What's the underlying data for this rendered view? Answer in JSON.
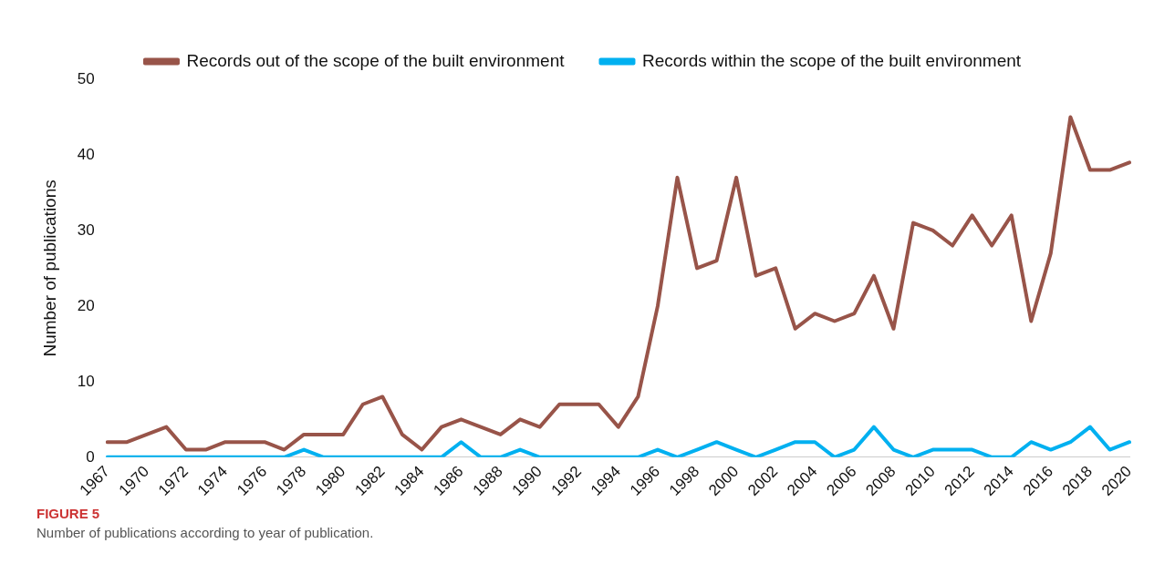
{
  "chart_data": {
    "type": "line",
    "categories": [
      "1967",
      null,
      "1970",
      null,
      "1972",
      null,
      "1974",
      null,
      "1976",
      null,
      "1978",
      null,
      "1980",
      null,
      "1982",
      null,
      "1984",
      null,
      "1986",
      null,
      "1988",
      null,
      "1990",
      null,
      "1992",
      null,
      "1994",
      null,
      "1996",
      null,
      "1998",
      null,
      "2000",
      null,
      "2002",
      null,
      "2004",
      null,
      "2006",
      null,
      "2008",
      null,
      "2010",
      null,
      "2012",
      null,
      "2014",
      null,
      "2016",
      null,
      "2018",
      null,
      "2020"
    ],
    "series": [
      {
        "name": "Records out of the scope of the built environment",
        "color": "#985449",
        "values": [
          2,
          2,
          3,
          4,
          1,
          1,
          2,
          2,
          2,
          1,
          3,
          3,
          3,
          7,
          8,
          3,
          1,
          4,
          5,
          4,
          3,
          5,
          4,
          7,
          7,
          7,
          4,
          8,
          20,
          37,
          25,
          26,
          37,
          24,
          25,
          17,
          19,
          18,
          19,
          24,
          17,
          31,
          30,
          28,
          32,
          28,
          32,
          18,
          27,
          45,
          38,
          38,
          39
        ]
      },
      {
        "name": "Records within the scope of the built environment",
        "color": "#00b0f0",
        "values": [
          0,
          0,
          0,
          0,
          0,
          0,
          0,
          0,
          0,
          0,
          1,
          0,
          0,
          0,
          0,
          0,
          0,
          0,
          2,
          0,
          0,
          1,
          0,
          0,
          0,
          0,
          0,
          0,
          1,
          0,
          1,
          2,
          1,
          0,
          1,
          2,
          2,
          0,
          1,
          4,
          1,
          0,
          1,
          1,
          1,
          0,
          0,
          2,
          1,
          2,
          4,
          1,
          2
        ]
      }
    ],
    "ylabel": "Number of publications",
    "ylim": [
      0,
      50
    ],
    "yticks": [
      0,
      10,
      20,
      30,
      40,
      50
    ],
    "grid": false,
    "legend": "top",
    "marker": "none",
    "line_style": "solid",
    "annotations": [
      "FIGURE 5",
      "Number of publications according to year of publication."
    ]
  }
}
